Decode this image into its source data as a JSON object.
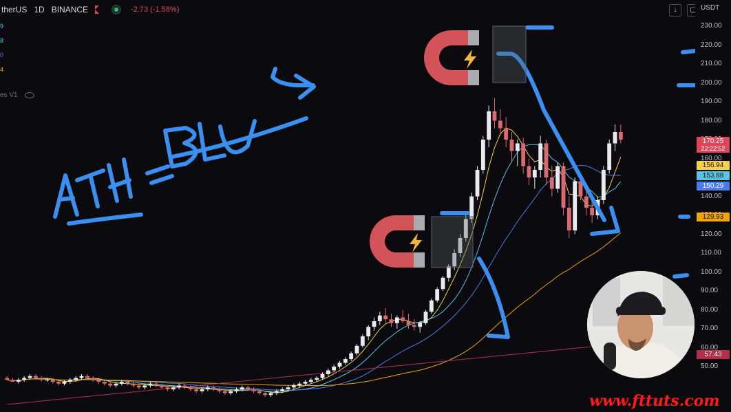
{
  "header": {
    "symbol": "therUS",
    "interval": "1D",
    "exchange": "BINANCE",
    "change": "-2.73 (-1.58%)"
  },
  "left_values": [
    "9",
    "8",
    "0",
    "4"
  ],
  "left_value_colors": [
    "#59c5e0",
    "#59c5e0",
    "#4b7be6",
    "#f0a500"
  ],
  "volume_label": "es V1",
  "axis": {
    "currency": "USDT",
    "ticks": [
      "230.00",
      "220.00",
      "210.00",
      "200.00",
      "190.00",
      "180.00",
      "170.00",
      "160.00",
      "150.00",
      "140.00",
      "130.00",
      "120.00",
      "110.00",
      "100.00",
      "90.00",
      "80.00",
      "70.00",
      "60.00",
      "50.00"
    ],
    "price_badge": "170.25",
    "countdown": "22:22:52",
    "ma_badges": [
      {
        "value": "156.94",
        "color": "#f5d24a"
      },
      {
        "value": "153.88",
        "color": "#59c5e0"
      },
      {
        "value": "150.29",
        "color": "#4b7be6"
      },
      {
        "value": "129.93",
        "color": "#f0a500"
      },
      {
        "value": "57.43",
        "color": "#b0304a"
      }
    ]
  },
  "annotation": {
    "text_ath": "ATH",
    "text_eq": "=",
    "text_blu": "BLU",
    "text_s": "S"
  },
  "watermark": "www.fttuts.com",
  "colors": {
    "up": "#e9eaee",
    "down": "#d96a6f",
    "drawing": "#3a8ff0",
    "magnet_red": "#d25358",
    "magnet_grey": "#a9abb2"
  },
  "chart_data": {
    "type": "candlestick",
    "ylim": [
      30,
      235
    ],
    "candles": [
      [
        44,
        45,
        43,
        43
      ],
      [
        43,
        44,
        42,
        42
      ],
      [
        42,
        44,
        41,
        43
      ],
      [
        43,
        45,
        42,
        44
      ],
      [
        44,
        46,
        43,
        45
      ],
      [
        45,
        46,
        43,
        44
      ],
      [
        44,
        45,
        42,
        43
      ],
      [
        43,
        44,
        42,
        43
      ],
      [
        43,
        44,
        41,
        42
      ],
      [
        42,
        43,
        40,
        41
      ],
      [
        41,
        43,
        40,
        42
      ],
      [
        42,
        44,
        41,
        43
      ],
      [
        43,
        45,
        42,
        44
      ],
      [
        44,
        46,
        43,
        45
      ],
      [
        45,
        46,
        44,
        44
      ],
      [
        44,
        45,
        42,
        43
      ],
      [
        43,
        44,
        41,
        42
      ],
      [
        42,
        43,
        40,
        41
      ],
      [
        41,
        42,
        39,
        40
      ],
      [
        40,
        42,
        39,
        41
      ],
      [
        41,
        43,
        40,
        42
      ],
      [
        42,
        43,
        40,
        41
      ],
      [
        41,
        42,
        39,
        40
      ],
      [
        40,
        41,
        38,
        39
      ],
      [
        39,
        41,
        38,
        40
      ],
      [
        40,
        42,
        39,
        41
      ],
      [
        41,
        42,
        39,
        40
      ],
      [
        40,
        41,
        38,
        39
      ],
      [
        39,
        40,
        37,
        38
      ],
      [
        38,
        40,
        37,
        39
      ],
      [
        39,
        41,
        38,
        40
      ],
      [
        40,
        41,
        38,
        39
      ],
      [
        39,
        40,
        37,
        38
      ],
      [
        38,
        39,
        36,
        37
      ],
      [
        37,
        39,
        36,
        38
      ],
      [
        38,
        40,
        37,
        39
      ],
      [
        39,
        40,
        37,
        38
      ],
      [
        38,
        39,
        36,
        37
      ],
      [
        37,
        38,
        35,
        36
      ],
      [
        36,
        38,
        35,
        37
      ],
      [
        37,
        39,
        36,
        38
      ],
      [
        38,
        40,
        37,
        39
      ],
      [
        39,
        40,
        37,
        38
      ],
      [
        38,
        39,
        36,
        37
      ],
      [
        37,
        38,
        35,
        36
      ],
      [
        36,
        37,
        34,
        35
      ],
      [
        35,
        37,
        34,
        36
      ],
      [
        36,
        38,
        35,
        37
      ],
      [
        37,
        39,
        36,
        38
      ],
      [
        38,
        40,
        37,
        39
      ],
      [
        39,
        41,
        38,
        40
      ],
      [
        40,
        42,
        39,
        41
      ],
      [
        41,
        43,
        40,
        42
      ],
      [
        42,
        44,
        41,
        43
      ],
      [
        43,
        45,
        42,
        44
      ],
      [
        44,
        47,
        43,
        46
      ],
      [
        46,
        49,
        45,
        48
      ],
      [
        48,
        51,
        47,
        50
      ],
      [
        50,
        53,
        49,
        52
      ],
      [
        52,
        55,
        51,
        54
      ],
      [
        54,
        58,
        53,
        57
      ],
      [
        57,
        62,
        56,
        61
      ],
      [
        61,
        67,
        60,
        66
      ],
      [
        66,
        72,
        64,
        71
      ],
      [
        71,
        76,
        69,
        74
      ],
      [
        74,
        79,
        72,
        77
      ],
      [
        77,
        81,
        73,
        75
      ],
      [
        75,
        78,
        71,
        73
      ],
      [
        73,
        77,
        70,
        76
      ],
      [
        76,
        80,
        73,
        74
      ],
      [
        74,
        78,
        70,
        72
      ],
      [
        72,
        75,
        69,
        71
      ],
      [
        71,
        74,
        68,
        73
      ],
      [
        73,
        80,
        72,
        79
      ],
      [
        79,
        86,
        78,
        85
      ],
      [
        85,
        92,
        84,
        91
      ],
      [
        91,
        98,
        90,
        97
      ],
      [
        97,
        104,
        95,
        103
      ],
      [
        103,
        112,
        101,
        110
      ],
      [
        110,
        120,
        108,
        118
      ],
      [
        118,
        130,
        116,
        128
      ],
      [
        128,
        142,
        126,
        140
      ],
      [
        140,
        156,
        138,
        154
      ],
      [
        154,
        172,
        152,
        170
      ],
      [
        170,
        188,
        166,
        185
      ],
      [
        185,
        192,
        176,
        180
      ],
      [
        180,
        186,
        172,
        176
      ],
      [
        176,
        182,
        166,
        170
      ],
      [
        170,
        174,
        158,
        164
      ],
      [
        164,
        170,
        156,
        168
      ],
      [
        168,
        171,
        152,
        156
      ],
      [
        156,
        160,
        146,
        150
      ],
      [
        150,
        156,
        144,
        154
      ],
      [
        154,
        172,
        150,
        168
      ],
      [
        168,
        170,
        146,
        150
      ],
      [
        150,
        156,
        140,
        144
      ],
      [
        144,
        158,
        142,
        156
      ],
      [
        156,
        158,
        130,
        134
      ],
      [
        134,
        140,
        118,
        122
      ],
      [
        122,
        150,
        120,
        148
      ],
      [
        148,
        152,
        138,
        140
      ],
      [
        140,
        146,
        130,
        134
      ],
      [
        134,
        138,
        126,
        130
      ],
      [
        130,
        140,
        128,
        138
      ],
      [
        138,
        156,
        136,
        154
      ],
      [
        154,
        170,
        152,
        168
      ],
      [
        168,
        178,
        164,
        174
      ],
      [
        174,
        178,
        168,
        170
      ]
    ]
  }
}
